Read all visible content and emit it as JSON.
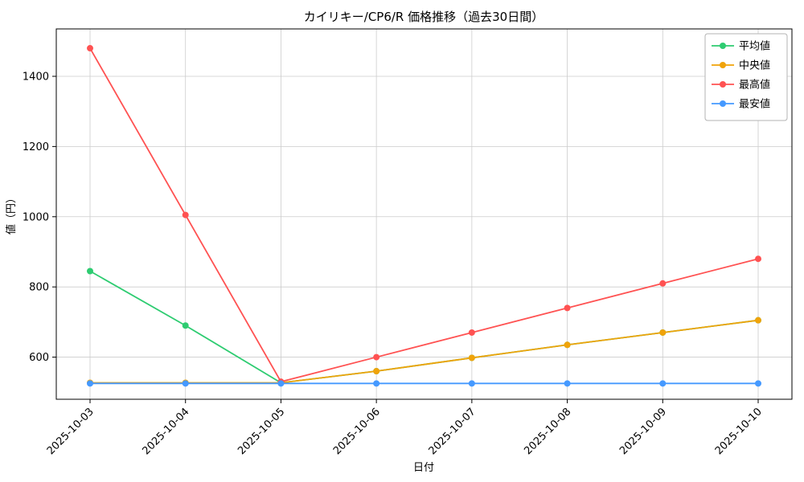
{
  "chart_data": {
    "type": "line",
    "title": "カイリキー/CP6/R 価格推移（過去30日間）",
    "xlabel": "日付",
    "ylabel": "値（円）",
    "x": [
      "2025-10-03",
      "2025-10-04",
      "2025-10-05",
      "2025-10-06",
      "2025-10-07",
      "2025-10-08",
      "2025-10-09",
      "2025-10-10"
    ],
    "series": [
      {
        "name": "平均値",
        "color": "#2ecc71",
        "values": [
          845,
          690,
          527,
          560,
          598,
          635,
          670,
          705
        ]
      },
      {
        "name": "中央値",
        "color": "#f0a30a",
        "values": [
          527,
          527,
          527,
          560,
          598,
          635,
          670,
          705
        ]
      },
      {
        "name": "最高値",
        "color": "#ff5252",
        "values": [
          1480,
          1005,
          530,
          600,
          670,
          740,
          810,
          880
        ]
      },
      {
        "name": "最安値",
        "color": "#4599ff",
        "values": [
          525,
          525,
          525,
          525,
          525,
          525,
          525,
          525
        ]
      }
    ],
    "yticks": [
      600,
      800,
      1000,
      1200,
      1400
    ],
    "ylim": [
      480,
      1535
    ],
    "grid": true,
    "legend_position": "upper right",
    "colors": {
      "grid": "#cccccc",
      "frame": "#000000",
      "legend_border": "#b3b3b3",
      "background": "#ffffff"
    }
  }
}
